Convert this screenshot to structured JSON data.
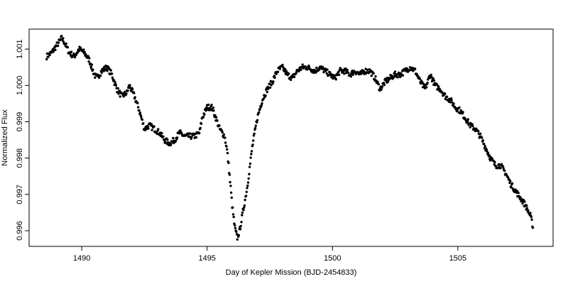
{
  "chart_data": {
    "type": "scatter",
    "title": "",
    "xlabel": "Day of Kepler Mission (BJD-2454833)",
    "ylabel": "Normalized Flux",
    "xlim": [
      1487.9,
      1508.8
    ],
    "ylim": [
      0.99557,
      1.00155
    ],
    "x_ticks": [
      1490,
      1495,
      1500,
      1505
    ],
    "x_tick_labels": [
      "1490",
      "1495",
      "1500",
      "1505"
    ],
    "y_ticks": [
      0.996,
      0.997,
      0.998,
      0.999,
      1.0,
      1.001
    ],
    "y_tick_labels": [
      "0.996",
      "0.997",
      "0.998",
      "0.999",
      "1.000",
      "1.001"
    ],
    "grid": false,
    "marker_color": "#000000",
    "series": [
      {
        "x": [
          1488.6,
          1488.8,
          1489.0,
          1489.2,
          1489.3,
          1489.5,
          1489.7,
          1489.9,
          1490.1,
          1490.3,
          1490.5,
          1490.6,
          1490.8,
          1491.0,
          1491.2,
          1491.4,
          1491.6,
          1491.8,
          1491.9,
          1492.1,
          1492.3,
          1492.5,
          1492.7,
          1492.9,
          1493.1,
          1493.3,
          1493.5,
          1493.7,
          1493.9,
          1494.1,
          1494.3,
          1494.5,
          1494.7,
          1494.8,
          1495.0,
          1495.2,
          1495.4,
          1495.5,
          1495.6,
          1495.7,
          1495.8,
          1495.9,
          1496.0,
          1496.1,
          1496.2,
          1496.3,
          1496.4,
          1496.5,
          1496.6,
          1496.8,
          1497.0,
          1497.2,
          1497.4,
          1497.6,
          1497.8,
          1498.0,
          1498.2,
          1498.4,
          1498.6,
          1498.8,
          1499.0,
          1499.3,
          1499.5,
          1499.7,
          1499.9,
          1500.1,
          1500.3,
          1500.5,
          1500.7,
          1500.9,
          1501.1,
          1501.3,
          1501.5,
          1501.7,
          1501.9,
          1502.1,
          1502.3,
          1502.5,
          1502.7,
          1502.9,
          1503.1,
          1503.3,
          1503.5,
          1503.7,
          1503.9,
          1504.1,
          1504.3,
          1504.5,
          1504.7,
          1504.9,
          1505.1,
          1505.3,
          1505.5,
          1505.7,
          1505.9,
          1506.1,
          1506.3,
          1506.5,
          1506.7,
          1506.9,
          1507.1,
          1507.3,
          1507.5,
          1507.7,
          1507.9,
          1508.0
        ],
        "y": [
          1.0008,
          1.0009,
          1.0011,
          1.0013,
          1.0012,
          1.0009,
          1.0008,
          1.001,
          1.0009,
          1.0007,
          1.0003,
          1.0002,
          1.0004,
          1.0005,
          1.0003,
          0.9999,
          0.9997,
          0.9998,
          1.0,
          0.9997,
          0.9993,
          0.9988,
          0.9989,
          0.9988,
          0.9987,
          0.9985,
          0.9984,
          0.9985,
          0.9987,
          0.9986,
          0.9986,
          0.9986,
          0.9987,
          0.9991,
          0.9994,
          0.9994,
          0.999,
          0.9988,
          0.9987,
          0.9986,
          0.9982,
          0.9975,
          0.9967,
          0.9961,
          0.9958,
          0.996,
          0.9964,
          0.9968,
          0.9972,
          0.9983,
          0.9991,
          0.9996,
          0.9999,
          1.0001,
          1.0004,
          1.0005,
          1.0003,
          1.0002,
          1.0004,
          1.0005,
          1.0005,
          1.0004,
          1.0005,
          1.0004,
          1.0003,
          1.0002,
          1.0004,
          1.0004,
          1.0003,
          1.0004,
          1.0003,
          1.0004,
          1.0004,
          1.0002,
          0.9999,
          1.0001,
          1.0002,
          1.0003,
          1.0003,
          1.0004,
          1.0005,
          1.0004,
          1.0001,
          0.9999,
          1.0003,
          1.0,
          0.9999,
          0.9997,
          0.9996,
          0.9994,
          0.9993,
          0.9991,
          0.9989,
          0.9988,
          0.9986,
          0.9983,
          0.998,
          0.9978,
          0.9978,
          0.9976,
          0.9973,
          0.9971,
          0.9969,
          0.9967,
          0.9964,
          0.9961
        ]
      }
    ]
  }
}
